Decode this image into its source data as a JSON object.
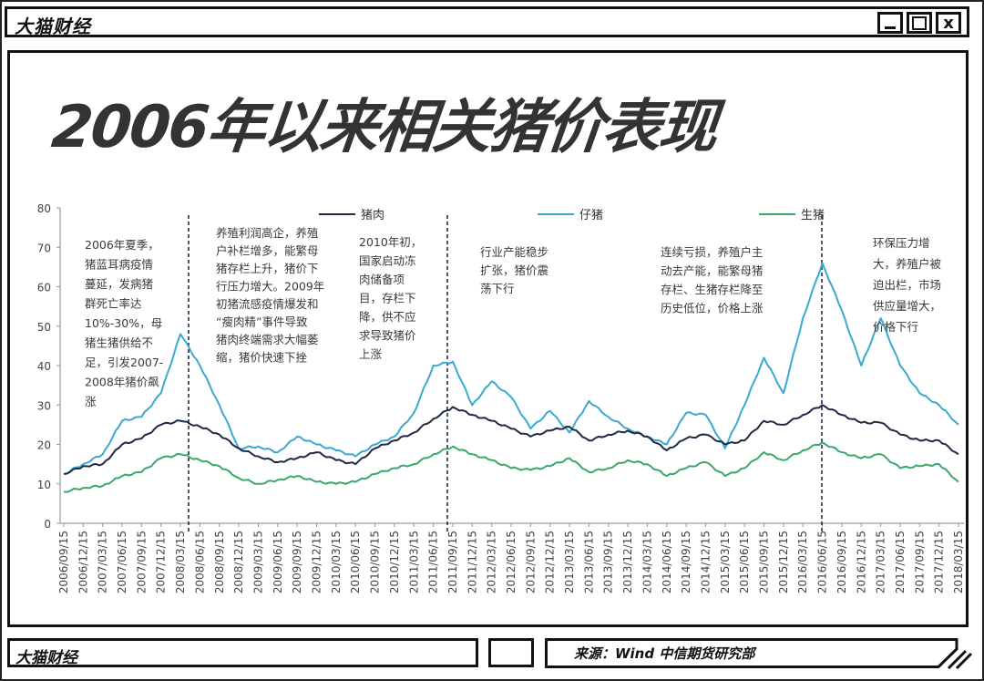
{
  "window": {
    "brand": "大猫财经",
    "buttons": {
      "minimize": "_",
      "maximize": "□",
      "close": "x"
    }
  },
  "page_title": "2006年以来相关猪价表现",
  "footer": {
    "brand": "大猫财经",
    "source": "来源：Wind 中信期货研究部"
  },
  "colors": {
    "pork": "#1f2a44",
    "piglet": "#3aa9d0",
    "live_hog": "#3aa86a",
    "divider": "#1f2a44"
  },
  "annotations": [
    {
      "id": "a1",
      "lines": [
        "2006年夏季，",
        "猪蓝耳病疫情",
        "蔓延，发病猪",
        "群死亡率达",
        "10%-30%，母",
        "猪生猪供给不",
        "足，引发2007-",
        "2008年猪价飙",
        "涨"
      ]
    },
    {
      "id": "a2",
      "lines": [
        "养殖利润高企，养殖",
        "户补栏增多，能繁母",
        "猪存栏上升，猪价下",
        "行压力增大。2009年",
        "初猪流感疫情爆发和",
        "“瘦肉精”事件导致",
        "猪肉终端需求大幅萎",
        "缩，猪价快速下挫"
      ]
    },
    {
      "id": "a3",
      "lines": [
        "2010年初，",
        "国家启动冻",
        "肉储备项",
        "目，存栏下",
        "降，供不应",
        "求导致猪价",
        "上涨"
      ]
    },
    {
      "id": "a4",
      "lines": [
        "行业产能稳步",
        "扩张，猪价震",
        "荡下行"
      ]
    },
    {
      "id": "a5",
      "lines": [
        "连续亏损，养殖户主",
        "动去产能，能繁母猪",
        "存栏、生猪存栏降至",
        "历史低位，价格上涨"
      ]
    },
    {
      "id": "a6",
      "lines": [
        "环保压力增",
        "大，养殖户被",
        "迫出栏，市场",
        "供应量增大，",
        "价格下行"
      ]
    }
  ],
  "chart_data": {
    "type": "line",
    "title": "2006年以来相关猪价表现",
    "xlabel": "",
    "ylabel": "",
    "ylim": [
      0,
      80
    ],
    "yticks": [
      0,
      10,
      20,
      30,
      40,
      50,
      60,
      70,
      80
    ],
    "grid": false,
    "legend_position": "top",
    "categories": [
      "2006/09/15",
      "2006/12/15",
      "2007/03/15",
      "2007/06/15",
      "2007/09/15",
      "2007/12/15",
      "2008/03/15",
      "2008/06/15",
      "2008/09/15",
      "2008/12/15",
      "2009/03/15",
      "2009/06/15",
      "2009/09/15",
      "2009/12/15",
      "2010/03/15",
      "2010/06/15",
      "2010/09/15",
      "2010/12/15",
      "2011/03/15",
      "2011/06/15",
      "2011/09/15",
      "2011/12/15",
      "2012/03/15",
      "2012/06/15",
      "2012/09/15",
      "2012/12/15",
      "2013/03/15",
      "2013/06/15",
      "2013/09/15",
      "2013/12/15",
      "2014/03/15",
      "2014/06/15",
      "2014/09/15",
      "2014/12/15",
      "2015/03/15",
      "2015/06/15",
      "2015/09/15",
      "2015/12/15",
      "2016/03/15",
      "2016/06/15",
      "2016/09/15",
      "2016/12/15",
      "2017/03/15",
      "2017/06/15",
      "2017/09/15",
      "2017/12/15",
      "2018/03/15"
    ],
    "series": [
      {
        "name": "猪肉",
        "values": [
          12.5,
          14.5,
          15.0,
          20.0,
          21.5,
          25.0,
          26.0,
          24.5,
          22.5,
          19.0,
          17.0,
          15.5,
          16.5,
          18.0,
          16.0,
          15.0,
          19.0,
          21.0,
          23.0,
          26.5,
          29.5,
          27.5,
          26.0,
          24.0,
          22.0,
          23.5,
          24.5,
          21.0,
          22.5,
          23.5,
          22.0,
          18.5,
          21.5,
          22.5,
          20.0,
          21.0,
          26.0,
          25.0,
          27.5,
          30.0,
          27.5,
          25.5,
          25.5,
          22.5,
          21.0,
          21.0,
          17.5
        ]
      },
      {
        "name": "仔猪",
        "values": [
          12.5,
          15.0,
          17.5,
          26.0,
          27.0,
          33.0,
          48.0,
          40.0,
          30.0,
          19.0,
          19.5,
          18.0,
          22.0,
          20.0,
          18.5,
          17.0,
          20.0,
          22.0,
          28.0,
          40.0,
          41.0,
          30.0,
          36.0,
          32.0,
          24.0,
          28.5,
          23.0,
          31.0,
          27.0,
          24.0,
          22.0,
          20.0,
          28.0,
          27.5,
          19.0,
          30.0,
          42.0,
          33.0,
          52.0,
          66.0,
          54.0,
          40.0,
          52.0,
          40.0,
          33.0,
          30.0,
          25.0
        ]
      },
      {
        "name": "生猪",
        "values": [
          8.0,
          9.0,
          9.5,
          12.0,
          13.0,
          16.5,
          17.5,
          16.0,
          14.5,
          11.5,
          10.0,
          11.0,
          12.0,
          10.5,
          10.0,
          10.5,
          12.5,
          14.0,
          15.0,
          17.5,
          19.5,
          17.5,
          16.0,
          14.0,
          13.5,
          14.5,
          16.5,
          13.0,
          14.0,
          16.0,
          15.0,
          12.0,
          14.0,
          15.5,
          12.0,
          14.0,
          18.0,
          16.0,
          18.5,
          20.5,
          18.0,
          16.5,
          17.5,
          14.0,
          14.5,
          15.0,
          10.5
        ]
      }
    ],
    "vertical_markers": [
      "2008/05",
      "2011/08",
      "2016/06"
    ],
    "legend": [
      "猪肉",
      "仔猪",
      "生猪"
    ]
  }
}
